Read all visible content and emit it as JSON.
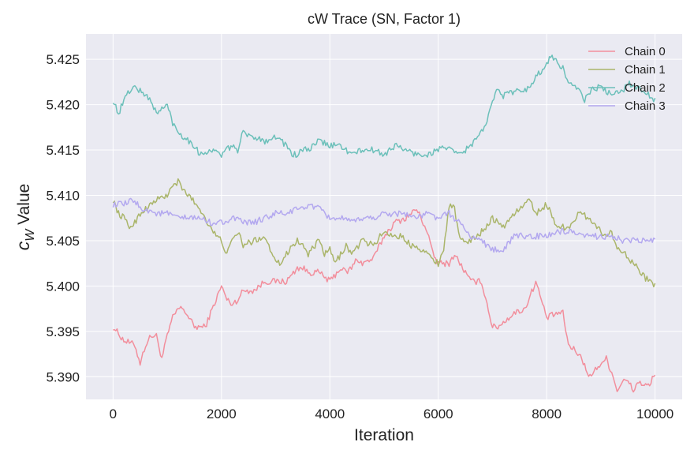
{
  "chart_data": {
    "type": "line",
    "title": "cW Trace (SN, Factor 1)",
    "xlabel": "Iteration",
    "ylabel": {
      "main": "c",
      "sub": "W",
      "rest": " Value"
    },
    "xlim": [
      -500,
      10500
    ],
    "ylim": [
      5.3875,
      5.4278
    ],
    "xticks": [
      0,
      2000,
      4000,
      6000,
      8000,
      10000
    ],
    "yticks": [
      5.39,
      5.395,
      5.4,
      5.405,
      5.41,
      5.415,
      5.42,
      5.425
    ],
    "ytick_labels": [
      "5.390",
      "5.395",
      "5.400",
      "5.405",
      "5.410",
      "5.415",
      "5.420",
      "5.425"
    ],
    "grid": true,
    "legend_position": "top-right",
    "series": [
      {
        "name": "Chain 0",
        "color": "#f28e9c",
        "x": [
          0,
          200,
          400,
          500,
          600,
          700,
          800,
          900,
          1000,
          1100,
          1200,
          1300,
          1400,
          1500,
          1600,
          1700,
          1800,
          1900,
          2000,
          2100,
          2200,
          2300,
          2400,
          2500,
          2600,
          2800,
          3000,
          3200,
          3400,
          3500,
          3600,
          3800,
          4000,
          4200,
          4300,
          4400,
          4500,
          4600,
          4800,
          5000,
          5200,
          5400,
          5600,
          5800,
          5900,
          6000,
          6100,
          6200,
          6300,
          6400,
          6500,
          6600,
          6800,
          7000,
          7100,
          7200,
          7400,
          7600,
          7800,
          7900,
          8000,
          8200,
          8300,
          8400,
          8600,
          8800,
          9000,
          9100,
          9200,
          9300,
          9400,
          9500,
          9600,
          9700,
          9800,
          9900,
          10000
        ],
        "y": [
          5.3955,
          5.394,
          5.3935,
          5.3915,
          5.3935,
          5.3945,
          5.3945,
          5.392,
          5.3945,
          5.3965,
          5.3975,
          5.3975,
          5.3965,
          5.3955,
          5.3955,
          5.3955,
          5.397,
          5.3985,
          5.4,
          5.3985,
          5.398,
          5.3985,
          5.3995,
          5.3995,
          5.3995,
          5.4005,
          5.4005,
          5.4005,
          5.402,
          5.402,
          5.4015,
          5.4015,
          5.4005,
          5.402,
          5.4015,
          5.402,
          5.403,
          5.4025,
          5.403,
          5.4055,
          5.407,
          5.4075,
          5.4085,
          5.406,
          5.4035,
          5.4025,
          5.4025,
          5.4025,
          5.4035,
          5.4025,
          5.4015,
          5.4005,
          5.4005,
          5.3955,
          5.3955,
          5.396,
          5.397,
          5.3975,
          5.4005,
          5.3985,
          5.3965,
          5.397,
          5.397,
          5.3935,
          5.3925,
          5.39,
          5.3915,
          5.392,
          5.3905,
          5.3885,
          5.3895,
          5.3895,
          5.3885,
          5.3895,
          5.389,
          5.389,
          5.3905
        ]
      },
      {
        "name": "Chain 1",
        "color": "#aab56a",
        "x": [
          0,
          100,
          200,
          300,
          400,
          500,
          600,
          800,
          1000,
          1100,
          1200,
          1300,
          1400,
          1600,
          1800,
          1900,
          2000,
          2100,
          2200,
          2300,
          2400,
          2600,
          2800,
          2900,
          3000,
          3100,
          3200,
          3300,
          3400,
          3500,
          3600,
          3800,
          3900,
          4000,
          4100,
          4200,
          4300,
          4400,
          4600,
          4800,
          5000,
          5200,
          5300,
          5400,
          5500,
          5600,
          5800,
          6000,
          6100,
          6200,
          6300,
          6400,
          6600,
          6800,
          7000,
          7200,
          7400,
          7600,
          7700,
          7800,
          8000,
          8200,
          8400,
          8600,
          8800,
          9000,
          9100,
          9200,
          9300,
          9400,
          9600,
          9800,
          10000
        ],
        "y": [
          5.4095,
          5.408,
          5.4075,
          5.4065,
          5.407,
          5.408,
          5.4085,
          5.4095,
          5.41,
          5.411,
          5.4115,
          5.4105,
          5.41,
          5.4085,
          5.4065,
          5.4055,
          5.405,
          5.4035,
          5.405,
          5.406,
          5.4045,
          5.405,
          5.4055,
          5.404,
          5.403,
          5.4025,
          5.4035,
          5.4045,
          5.405,
          5.4045,
          5.4035,
          5.405,
          5.4035,
          5.404,
          5.4025,
          5.4035,
          5.4045,
          5.4035,
          5.405,
          5.4045,
          5.406,
          5.4055,
          5.4055,
          5.405,
          5.4045,
          5.4045,
          5.4035,
          5.4025,
          5.404,
          5.409,
          5.4085,
          5.405,
          5.405,
          5.406,
          5.4075,
          5.4065,
          5.408,
          5.409,
          5.4095,
          5.408,
          5.409,
          5.4065,
          5.4065,
          5.408,
          5.4075,
          5.406,
          5.4055,
          5.406,
          5.404,
          5.404,
          5.4025,
          5.401,
          5.4
        ]
      },
      {
        "name": "Chain 2",
        "color": "#6cc0ba",
        "x": [
          0,
          100,
          200,
          300,
          400,
          500,
          600,
          700,
          800,
          900,
          1000,
          1100,
          1200,
          1300,
          1400,
          1500,
          1600,
          1800,
          2000,
          2200,
          2300,
          2400,
          2500,
          2600,
          2800,
          3000,
          3200,
          3300,
          3400,
          3500,
          3600,
          3800,
          4000,
          4200,
          4400,
          4600,
          4800,
          5000,
          5200,
          5400,
          5600,
          5800,
          6000,
          6100,
          6200,
          6400,
          6500,
          6600,
          6800,
          6900,
          7000,
          7100,
          7200,
          7400,
          7600,
          7800,
          8000,
          8100,
          8200,
          8300,
          8400,
          8600,
          8700,
          8800,
          9000,
          9200,
          9400,
          9500,
          9600,
          9800,
          10000
        ],
        "y": [
          5.4205,
          5.419,
          5.4205,
          5.4215,
          5.422,
          5.4215,
          5.421,
          5.4205,
          5.419,
          5.4195,
          5.42,
          5.418,
          5.417,
          5.4165,
          5.416,
          5.4155,
          5.4145,
          5.415,
          5.4145,
          5.4155,
          5.415,
          5.417,
          5.4165,
          5.4165,
          5.416,
          5.4165,
          5.4155,
          5.4145,
          5.4145,
          5.415,
          5.415,
          5.416,
          5.4155,
          5.4155,
          5.4145,
          5.415,
          5.415,
          5.4145,
          5.4155,
          5.415,
          5.4145,
          5.4145,
          5.415,
          5.4155,
          5.415,
          5.4145,
          5.415,
          5.4155,
          5.417,
          5.418,
          5.4205,
          5.422,
          5.421,
          5.4215,
          5.4215,
          5.423,
          5.4245,
          5.4255,
          5.4245,
          5.424,
          5.4225,
          5.4215,
          5.4205,
          5.4215,
          5.422,
          5.421,
          5.4215,
          5.4225,
          5.422,
          5.4215,
          5.4205
        ]
      },
      {
        "name": "Chain 3",
        "color": "#b3a8ef",
        "x": [
          0,
          200,
          400,
          500,
          600,
          800,
          1000,
          1200,
          1400,
          1600,
          1800,
          2000,
          2200,
          2400,
          2600,
          2800,
          3000,
          3200,
          3400,
          3500,
          3600,
          3800,
          4000,
          4200,
          4400,
          4600,
          4800,
          5000,
          5200,
          5400,
          5600,
          5800,
          6000,
          6200,
          6400,
          6500,
          6600,
          6800,
          7000,
          7200,
          7400,
          7600,
          7800,
          8000,
          8200,
          8400,
          8600,
          8800,
          9000,
          9200,
          9400,
          9600,
          9800,
          10000
        ],
        "y": [
          5.409,
          5.409,
          5.4095,
          5.4085,
          5.4085,
          5.408,
          5.408,
          5.4075,
          5.4075,
          5.4075,
          5.407,
          5.407,
          5.4075,
          5.407,
          5.407,
          5.4075,
          5.408,
          5.408,
          5.4085,
          5.4085,
          5.409,
          5.4085,
          5.4075,
          5.4075,
          5.407,
          5.4075,
          5.4075,
          5.408,
          5.408,
          5.408,
          5.4075,
          5.408,
          5.4075,
          5.408,
          5.407,
          5.406,
          5.4055,
          5.405,
          5.404,
          5.404,
          5.4055,
          5.4055,
          5.4055,
          5.4055,
          5.406,
          5.406,
          5.4055,
          5.4055,
          5.4055,
          5.4055,
          5.405,
          5.405,
          5.405,
          5.405
        ]
      }
    ]
  }
}
